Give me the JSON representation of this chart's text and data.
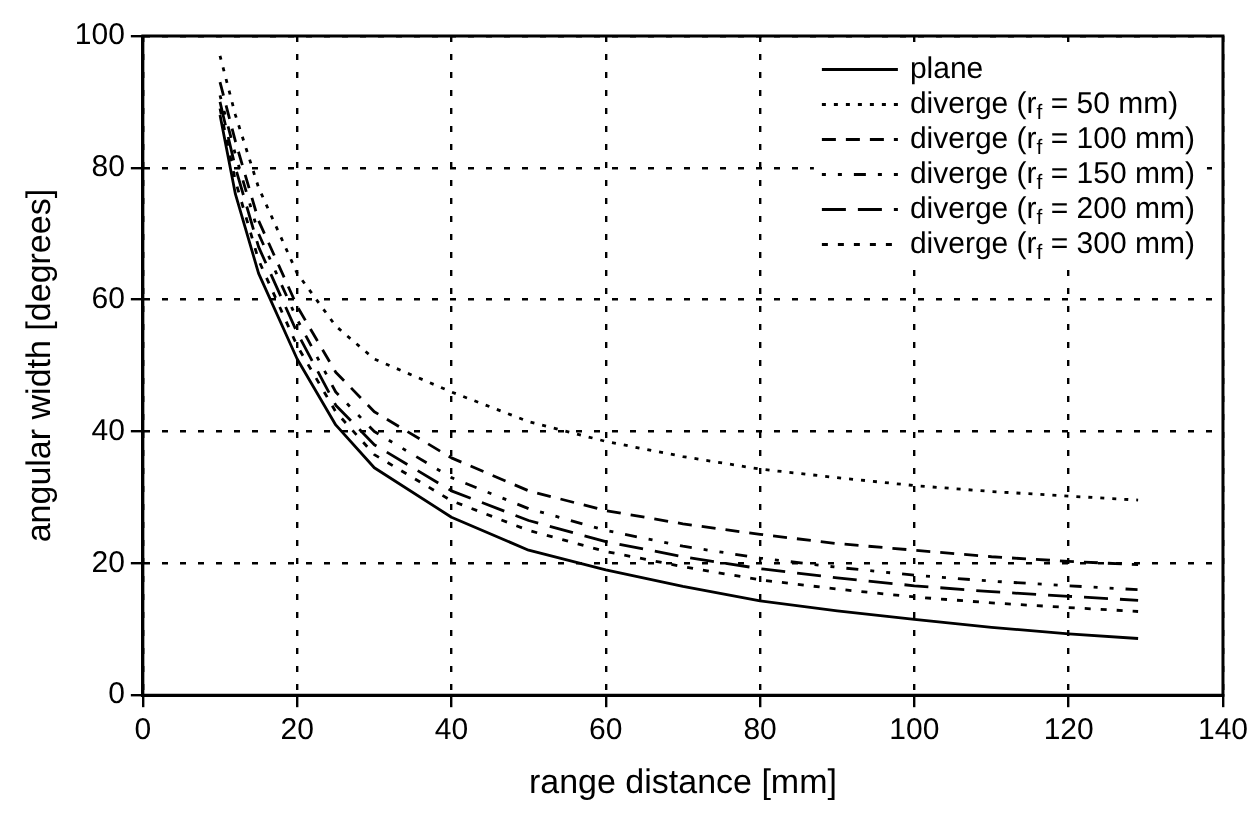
{
  "chart_data": {
    "type": "line",
    "xlabel": "range distance [mm]",
    "ylabel": "angular width [degrees]",
    "x": [
      10,
      12,
      15,
      20,
      25,
      30,
      40,
      50,
      60,
      70,
      80,
      90,
      100,
      110,
      120,
      129
    ],
    "xlim": [
      0,
      140
    ],
    "xticks": [
      0,
      20,
      40,
      60,
      80,
      100,
      120,
      140
    ],
    "ylim": [
      0,
      100
    ],
    "yticks": [
      0,
      20,
      40,
      60,
      80,
      100
    ],
    "grid": true,
    "legend": "top right",
    "marker": "none",
    "series": [
      {
        "name": "plane",
        "color": "#000000",
        "line_style": "solid",
        "values": [
          88,
          76,
          64,
          51,
          41,
          34.5,
          27,
          22,
          19,
          16.5,
          14.3,
          12.8,
          11.5,
          10.3,
          9.3,
          8.6
        ]
      },
      {
        "name": "diverge (r$_{f}$ = 50 mm)",
        "color": "#000000",
        "line_style": "dotted",
        "values": [
          97,
          88,
          77,
          64,
          56,
          51,
          46,
          41.5,
          38.5,
          36.2,
          34.3,
          33,
          31.8,
          30.9,
          30.2,
          29.6
        ]
      },
      {
        "name": "diverge (r$_{f}$ = 100 mm)",
        "color": "#000000",
        "line_style": "dashed",
        "values": [
          93,
          84,
          72,
          59,
          49,
          43,
          36,
          31,
          28,
          26,
          24.4,
          23,
          22,
          21,
          20.3,
          19.8
        ]
      },
      {
        "name": "diverge (r$_{f}$ = 150 mm)",
        "color": "#000000",
        "line_style": "dashdot",
        "values": [
          91,
          82,
          70,
          57,
          46,
          40,
          33,
          28.3,
          25,
          22.6,
          20.8,
          19.4,
          18.2,
          17.3,
          16.6,
          16
        ]
      },
      {
        "name": "diverge (r$_{f}$ = 200 mm)",
        "color": "#000000",
        "line_style": "longdash",
        "values": [
          90,
          80,
          68,
          55,
          44,
          38,
          31,
          26.5,
          23.3,
          21,
          19.2,
          17.8,
          16.6,
          15.7,
          15,
          14.4
        ]
      },
      {
        "name": "diverge (r$_{f}$ = 300 mm)",
        "color": "#000000",
        "line_style": "sparse",
        "values": [
          89,
          78,
          66,
          53,
          43,
          36.5,
          29.5,
          25,
          21.8,
          19.5,
          17.5,
          16.1,
          14.9,
          14,
          13.3,
          12.7
        ]
      }
    ]
  }
}
